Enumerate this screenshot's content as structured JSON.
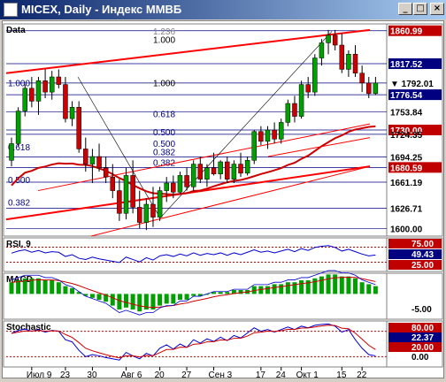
{
  "window": {
    "title": "MICEX, Daily - Индекс ММВБ",
    "minimize": "_",
    "maximize": "□",
    "close": "×"
  },
  "panels": {
    "data_label": "Data",
    "rsi_label": "RSI, 9",
    "macd_label": "MACD",
    "stoch_label": "Stochastic"
  },
  "colors": {
    "candle_up": "#00a000",
    "candle_down": "#cc0000",
    "channel": "#ff0000",
    "grid": "#000080",
    "price_label_bg": "#000080",
    "highlight_label_bg": "#c00000"
  },
  "x_labels": [
    "Июл 9",
    "23",
    "30",
    "Авг 6",
    "20",
    "27",
    "Сен 3",
    "17",
    "24",
    "Окт 1",
    "15",
    "22"
  ],
  "main_axis": {
    "labels": [
      {
        "value": "1860.99",
        "style": "red"
      },
      {
        "value": "1817.52",
        "style": "blue"
      },
      {
        "value": "1792.01",
        "style": "current"
      },
      {
        "value": "1776.54",
        "style": "blue"
      },
      {
        "value": "1753.84",
        "style": "plain"
      },
      {
        "value": "1730.00",
        "style": "red"
      },
      {
        "value": "1724.35",
        "style": "plain"
      },
      {
        "value": "1694.25",
        "style": "plain"
      },
      {
        "value": "1680.59",
        "style": "red"
      },
      {
        "value": "1661.19",
        "style": "plain"
      },
      {
        "value": "1626.71",
        "style": "plain"
      },
      {
        "value": "1600.00",
        "style": "plain"
      }
    ]
  },
  "fib_labels": {
    "a1": "1.000",
    "a2": "0.618",
    "a3": "0.500",
    "a4": "0.382",
    "b1": "1.236",
    "b2": "1.000",
    "b3": "1.000",
    "b4": "0.618",
    "b5": "0.500",
    "b6": "0.500",
    "b7": "0.382",
    "b8": "0.382"
  },
  "rsi_axis": [
    {
      "value": "75.00",
      "style": "red"
    },
    {
      "value": "49.43",
      "style": "blue"
    },
    {
      "value": "25.00",
      "style": "red"
    }
  ],
  "macd_axis": [
    {
      "value": "-5.00",
      "style": "plain"
    }
  ],
  "stoch_axis": [
    {
      "value": "80.00",
      "style": "red"
    },
    {
      "value": "22.37",
      "style": "blue"
    },
    {
      "value": "20.00",
      "style": "red"
    },
    {
      "value": "0.00",
      "style": "plain"
    }
  ],
  "chart_data": {
    "type": "candlestick",
    "title": "MICEX, Daily - Индекс ММВБ",
    "ylim": [
      1590,
      1870
    ],
    "candles": [
      {
        "o": 1690,
        "h": 1720,
        "l": 1682,
        "c": 1712
      },
      {
        "o": 1712,
        "h": 1760,
        "l": 1708,
        "c": 1755
      },
      {
        "o": 1755,
        "h": 1790,
        "l": 1748,
        "c": 1785
      },
      {
        "o": 1785,
        "h": 1800,
        "l": 1760,
        "c": 1768
      },
      {
        "o": 1768,
        "h": 1800,
        "l": 1750,
        "c": 1795
      },
      {
        "o": 1795,
        "h": 1810,
        "l": 1772,
        "c": 1780
      },
      {
        "o": 1780,
        "h": 1808,
        "l": 1770,
        "c": 1800
      },
      {
        "o": 1800,
        "h": 1810,
        "l": 1785,
        "c": 1790
      },
      {
        "o": 1790,
        "h": 1800,
        "l": 1740,
        "c": 1745
      },
      {
        "o": 1745,
        "h": 1768,
        "l": 1735,
        "c": 1760
      },
      {
        "o": 1760,
        "h": 1768,
        "l": 1700,
        "c": 1705
      },
      {
        "o": 1705,
        "h": 1720,
        "l": 1675,
        "c": 1685
      },
      {
        "o": 1685,
        "h": 1705,
        "l": 1660,
        "c": 1695
      },
      {
        "o": 1695,
        "h": 1712,
        "l": 1675,
        "c": 1680
      },
      {
        "o": 1680,
        "h": 1695,
        "l": 1660,
        "c": 1668
      },
      {
        "o": 1668,
        "h": 1685,
        "l": 1640,
        "c": 1650
      },
      {
        "o": 1650,
        "h": 1665,
        "l": 1610,
        "c": 1620
      },
      {
        "o": 1620,
        "h": 1680,
        "l": 1612,
        "c": 1670
      },
      {
        "o": 1670,
        "h": 1690,
        "l": 1620,
        "c": 1628
      },
      {
        "o": 1628,
        "h": 1650,
        "l": 1600,
        "c": 1608
      },
      {
        "o": 1608,
        "h": 1640,
        "l": 1598,
        "c": 1632
      },
      {
        "o": 1632,
        "h": 1655,
        "l": 1602,
        "c": 1615
      },
      {
        "o": 1615,
        "h": 1655,
        "l": 1610,
        "c": 1650
      },
      {
        "o": 1650,
        "h": 1668,
        "l": 1635,
        "c": 1660
      },
      {
        "o": 1660,
        "h": 1670,
        "l": 1640,
        "c": 1648
      },
      {
        "o": 1648,
        "h": 1675,
        "l": 1645,
        "c": 1670
      },
      {
        "o": 1670,
        "h": 1680,
        "l": 1650,
        "c": 1655
      },
      {
        "o": 1655,
        "h": 1690,
        "l": 1650,
        "c": 1685
      },
      {
        "o": 1685,
        "h": 1695,
        "l": 1660,
        "c": 1665
      },
      {
        "o": 1665,
        "h": 1685,
        "l": 1655,
        "c": 1680
      },
      {
        "o": 1680,
        "h": 1700,
        "l": 1670,
        "c": 1672
      },
      {
        "o": 1672,
        "h": 1690,
        "l": 1665,
        "c": 1688
      },
      {
        "o": 1688,
        "h": 1695,
        "l": 1660,
        "c": 1665
      },
      {
        "o": 1665,
        "h": 1690,
        "l": 1660,
        "c": 1685
      },
      {
        "o": 1685,
        "h": 1700,
        "l": 1668,
        "c": 1673
      },
      {
        "o": 1673,
        "h": 1695,
        "l": 1670,
        "c": 1690
      },
      {
        "o": 1690,
        "h": 1730,
        "l": 1685,
        "c": 1728
      },
      {
        "o": 1728,
        "h": 1735,
        "l": 1710,
        "c": 1715
      },
      {
        "o": 1715,
        "h": 1735,
        "l": 1705,
        "c": 1730
      },
      {
        "o": 1730,
        "h": 1740,
        "l": 1712,
        "c": 1718
      },
      {
        "o": 1718,
        "h": 1745,
        "l": 1712,
        "c": 1740
      },
      {
        "o": 1740,
        "h": 1770,
        "l": 1735,
        "c": 1765
      },
      {
        "o": 1765,
        "h": 1775,
        "l": 1740,
        "c": 1748
      },
      {
        "o": 1748,
        "h": 1795,
        "l": 1745,
        "c": 1790
      },
      {
        "o": 1790,
        "h": 1800,
        "l": 1772,
        "c": 1780
      },
      {
        "o": 1780,
        "h": 1830,
        "l": 1775,
        "c": 1825
      },
      {
        "o": 1825,
        "h": 1850,
        "l": 1815,
        "c": 1845
      },
      {
        "o": 1845,
        "h": 1862,
        "l": 1830,
        "c": 1855
      },
      {
        "o": 1855,
        "h": 1862,
        "l": 1835,
        "c": 1842
      },
      {
        "o": 1842,
        "h": 1858,
        "l": 1805,
        "c": 1810
      },
      {
        "o": 1810,
        "h": 1835,
        "l": 1800,
        "c": 1830
      },
      {
        "o": 1830,
        "h": 1842,
        "l": 1800,
        "c": 1805
      },
      {
        "o": 1805,
        "h": 1815,
        "l": 1780,
        "c": 1792
      },
      {
        "o": 1792,
        "h": 1800,
        "l": 1772,
        "c": 1778
      },
      {
        "o": 1778,
        "h": 1800,
        "l": 1776,
        "c": 1792
      }
    ],
    "rsi": [
      55,
      62,
      66,
      58,
      64,
      56,
      60,
      58,
      44,
      50,
      38,
      34,
      42,
      36,
      32,
      28,
      24,
      42,
      34,
      26,
      40,
      32,
      46,
      50,
      44,
      52,
      46,
      56,
      48,
      54,
      50,
      56,
      48,
      56,
      50,
      58,
      66,
      58,
      62,
      56,
      62,
      68,
      60,
      70,
      64,
      74,
      78,
      80,
      74,
      62,
      68,
      60,
      52,
      46,
      49
    ],
    "macd": [
      6,
      7,
      8,
      8,
      8,
      7,
      7,
      6,
      4,
      3,
      1,
      -1,
      -2,
      -3,
      -4,
      -6,
      -8,
      -7,
      -8,
      -9,
      -8,
      -8,
      -6,
      -5,
      -5,
      -3,
      -3,
      -1,
      -1,
      0,
      1,
      1,
      1,
      2,
      2,
      2,
      4,
      4,
      4,
      5,
      5,
      6,
      6,
      7,
      7,
      8,
      9,
      10,
      10,
      9,
      9,
      8,
      6,
      5,
      4
    ],
    "stochastic": [
      75,
      82,
      85,
      80,
      84,
      78,
      82,
      80,
      60,
      55,
      35,
      20,
      25,
      22,
      18,
      15,
      12,
      30,
      22,
      15,
      28,
      22,
      40,
      48,
      38,
      50,
      42,
      60,
      52,
      62,
      56,
      66,
      58,
      70,
      64,
      76,
      88,
      80,
      84,
      78,
      84,
      90,
      84,
      92,
      88,
      94,
      96,
      97,
      92,
      78,
      84,
      60,
      40,
      25,
      22
    ]
  }
}
